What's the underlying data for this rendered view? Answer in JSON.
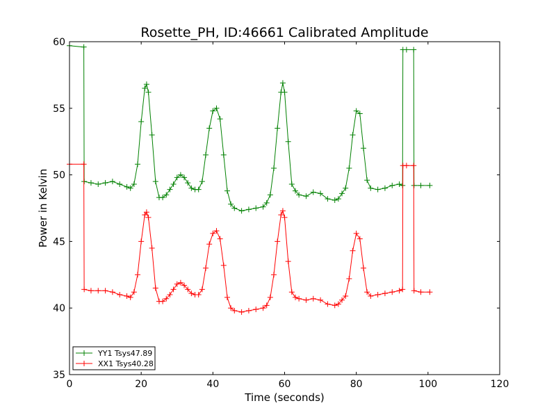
{
  "chart_data": {
    "type": "line",
    "title": "Rosette_PH, ID:46661 Calibrated Amplitude",
    "xlabel": "Time (seconds)",
    "ylabel": "Power in Kelvin",
    "xlim": [
      0,
      120
    ],
    "ylim": [
      35,
      60
    ],
    "x_ticks": [
      0,
      20,
      40,
      60,
      80,
      100,
      120
    ],
    "y_ticks": [
      35,
      40,
      45,
      50,
      55,
      60
    ],
    "grid": false,
    "legend_position": "lower-left",
    "marker": "+",
    "series": [
      {
        "name": "YY1 Tsys47.89",
        "color": "#008000",
        "x": [
          0,
          4,
          4.1,
          6,
          8,
          10,
          12,
          14,
          16,
          17,
          18,
          19,
          20,
          21,
          21.5,
          22,
          23,
          24,
          25,
          26,
          27,
          28,
          29,
          30,
          31,
          32,
          33,
          34,
          35,
          36,
          37,
          38,
          39,
          40,
          41,
          42,
          43,
          44,
          45,
          46,
          48,
          50,
          52,
          54,
          55,
          56,
          57,
          58,
          59,
          59.5,
          60,
          61,
          62,
          63,
          64,
          66,
          68,
          70,
          72,
          74,
          75,
          76,
          77,
          78,
          79,
          80,
          81,
          82,
          83,
          84,
          86,
          88,
          90,
          92,
          92.9,
          93,
          94,
          96,
          96.1,
          98,
          100.5
        ],
        "y": [
          59.7,
          59.6,
          49.5,
          49.4,
          49.3,
          49.4,
          49.5,
          49.3,
          49.1,
          49.0,
          49.3,
          50.8,
          54.0,
          56.5,
          56.8,
          56.2,
          53.0,
          49.5,
          48.3,
          48.3,
          48.5,
          48.9,
          49.3,
          49.8,
          50.0,
          49.8,
          49.4,
          49.0,
          48.9,
          48.9,
          49.5,
          51.5,
          53.5,
          54.8,
          55.0,
          54.2,
          51.5,
          48.8,
          47.8,
          47.5,
          47.3,
          47.4,
          47.5,
          47.6,
          47.9,
          48.5,
          50.5,
          53.5,
          56.2,
          56.9,
          56.2,
          52.5,
          49.3,
          48.8,
          48.5,
          48.4,
          48.7,
          48.6,
          48.2,
          48.1,
          48.2,
          48.6,
          49.0,
          50.5,
          53.0,
          54.8,
          54.6,
          52.0,
          49.6,
          49.0,
          48.9,
          49.0,
          49.2,
          49.3,
          49.2,
          59.4,
          59.4,
          59.4,
          49.2,
          49.2,
          49.2
        ]
      },
      {
        "name": "XX1 Tsys40.28",
        "color": "#ff0000",
        "x": [
          0,
          4,
          4.1,
          6,
          8,
          10,
          12,
          14,
          16,
          17,
          18,
          19,
          20,
          21,
          21.5,
          22,
          23,
          24,
          25,
          26,
          27,
          28,
          29,
          30,
          31,
          32,
          33,
          34,
          35,
          36,
          37,
          38,
          39,
          40,
          41,
          42,
          43,
          44,
          45,
          46,
          48,
          50,
          52,
          54,
          55,
          56,
          57,
          58,
          59,
          59.5,
          60,
          61,
          62,
          63,
          64,
          66,
          68,
          70,
          72,
          74,
          75,
          76,
          77,
          78,
          79,
          80,
          81,
          82,
          83,
          84,
          86,
          88,
          90,
          92,
          92.9,
          93,
          94,
          96,
          96.1,
          98,
          100.5
        ],
        "y": [
          50.8,
          50.8,
          41.4,
          41.3,
          41.3,
          41.3,
          41.2,
          41.0,
          40.9,
          40.8,
          41.2,
          42.5,
          45.0,
          47.0,
          47.2,
          46.8,
          44.5,
          41.5,
          40.5,
          40.5,
          40.7,
          41.0,
          41.4,
          41.8,
          41.9,
          41.7,
          41.4,
          41.1,
          41.0,
          41.0,
          41.4,
          43.0,
          44.8,
          45.6,
          45.8,
          45.2,
          43.2,
          40.8,
          40.0,
          39.8,
          39.7,
          39.8,
          39.9,
          40.0,
          40.2,
          40.8,
          42.5,
          45.0,
          47.0,
          47.3,
          46.8,
          43.5,
          41.2,
          40.8,
          40.7,
          40.6,
          40.7,
          40.6,
          40.3,
          40.2,
          40.3,
          40.6,
          40.9,
          42.2,
          44.3,
          45.6,
          45.2,
          43.0,
          41.2,
          40.9,
          41.0,
          41.1,
          41.2,
          41.3,
          41.4,
          50.7,
          50.7,
          50.7,
          41.3,
          41.2,
          41.2
        ]
      }
    ]
  }
}
